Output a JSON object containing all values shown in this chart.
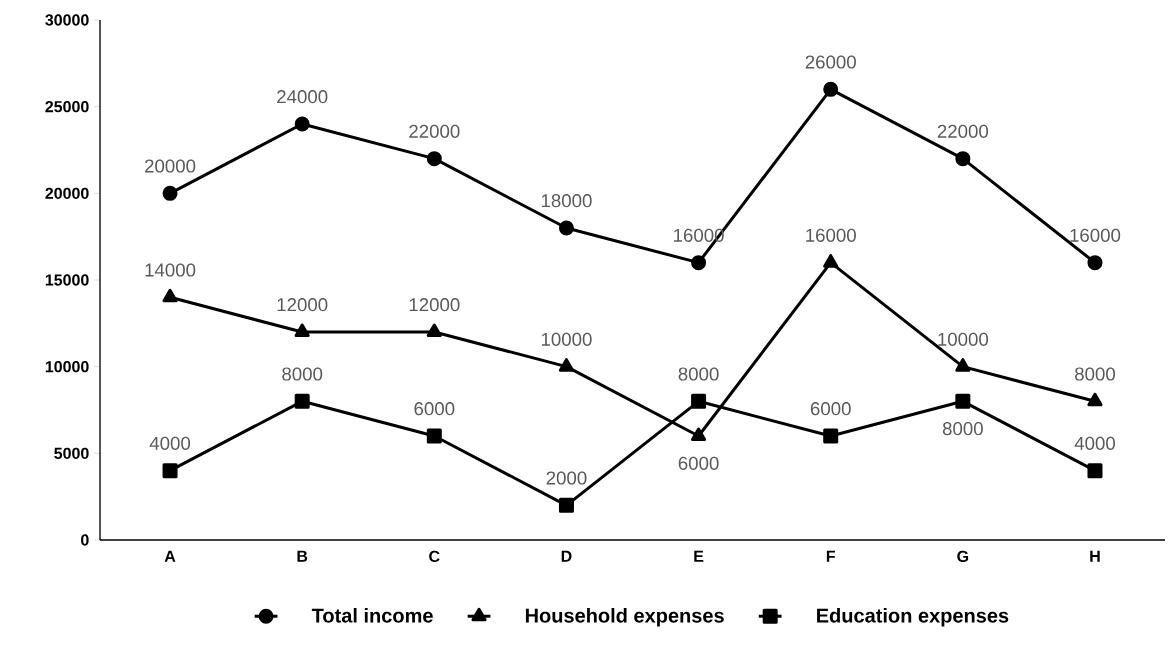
{
  "chart_data": {
    "type": "line",
    "categories": [
      "A",
      "B",
      "C",
      "D",
      "E",
      "F",
      "G",
      "H"
    ],
    "series": [
      {
        "name": "Total income",
        "color": "#000000",
        "marker": "circle",
        "values": [
          20000,
          24000,
          22000,
          18000,
          16000,
          26000,
          22000,
          16000
        ]
      },
      {
        "name": "Household expenses",
        "color": "#000000",
        "marker": "triangle",
        "values": [
          14000,
          12000,
          12000,
          10000,
          6000,
          16000,
          10000,
          8000
        ]
      },
      {
        "name": "Education expenses",
        "color": "#000000",
        "marker": "square",
        "values": [
          4000,
          8000,
          6000,
          2000,
          8000,
          6000,
          8000,
          4000
        ]
      }
    ],
    "ylim": [
      0,
      30000
    ],
    "yticks": [
      0,
      5000,
      10000,
      15000,
      20000,
      25000,
      30000
    ],
    "grid": false,
    "legend": "bottom",
    "data_labels": true,
    "line_style": "solid"
  }
}
